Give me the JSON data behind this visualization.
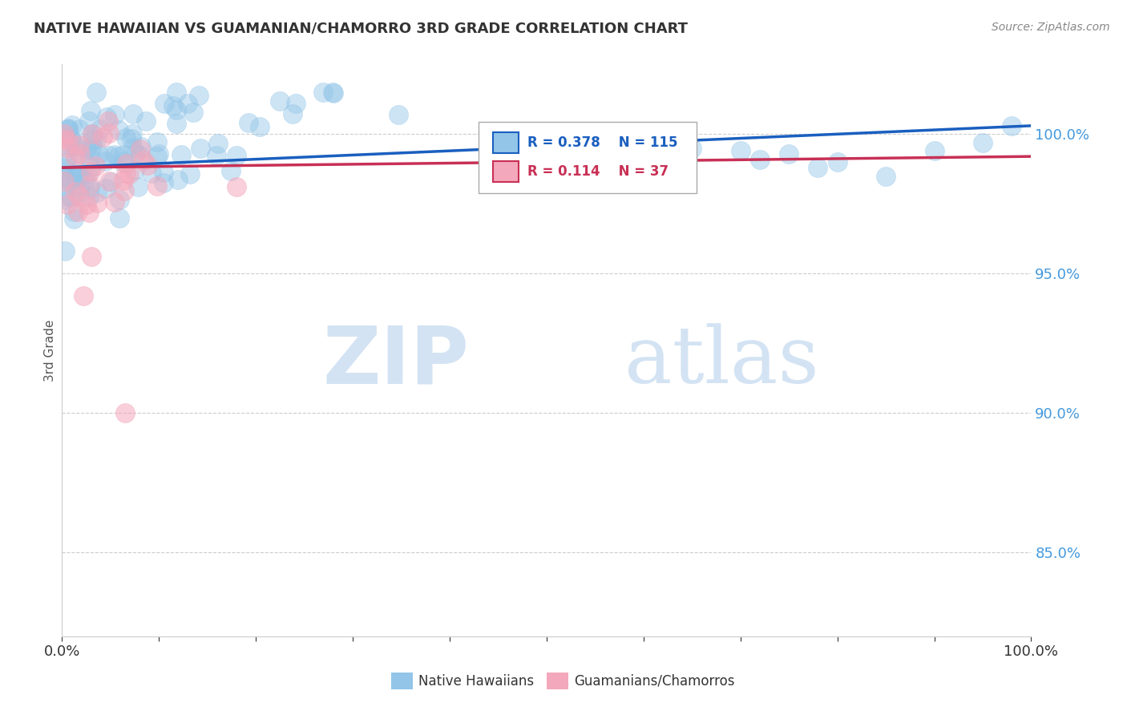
{
  "title": "NATIVE HAWAIIAN VS GUAMANIAN/CHAMORRO 3RD GRADE CORRELATION CHART",
  "source": "Source: ZipAtlas.com",
  "ylabel": "3rd Grade",
  "xlim": [
    0.0,
    1.0
  ],
  "ylim": [
    0.82,
    1.025
  ],
  "yticks": [
    0.85,
    0.9,
    0.95,
    1.0
  ],
  "ytick_labels": [
    "85.0%",
    "90.0%",
    "95.0%",
    "100.0%"
  ],
  "xtick_labels": [
    "0.0%",
    "",
    "",
    "",
    "",
    "",
    "",
    "",
    "",
    "",
    "100.0%"
  ],
  "blue_color": "#92C5E8",
  "pink_color": "#F4A8BC",
  "blue_line_color": "#1A5FBF",
  "pink_line_color": "#C83055",
  "legend_R_blue": "R = 0.378",
  "legend_N_blue": "N = 115",
  "legend_R_pink": "R = 0.114",
  "legend_N_pink": "N = 37",
  "watermark_zip": "ZIP",
  "watermark_atlas": "atlas",
  "background_color": "#ffffff",
  "grid_color": "#cccccc"
}
